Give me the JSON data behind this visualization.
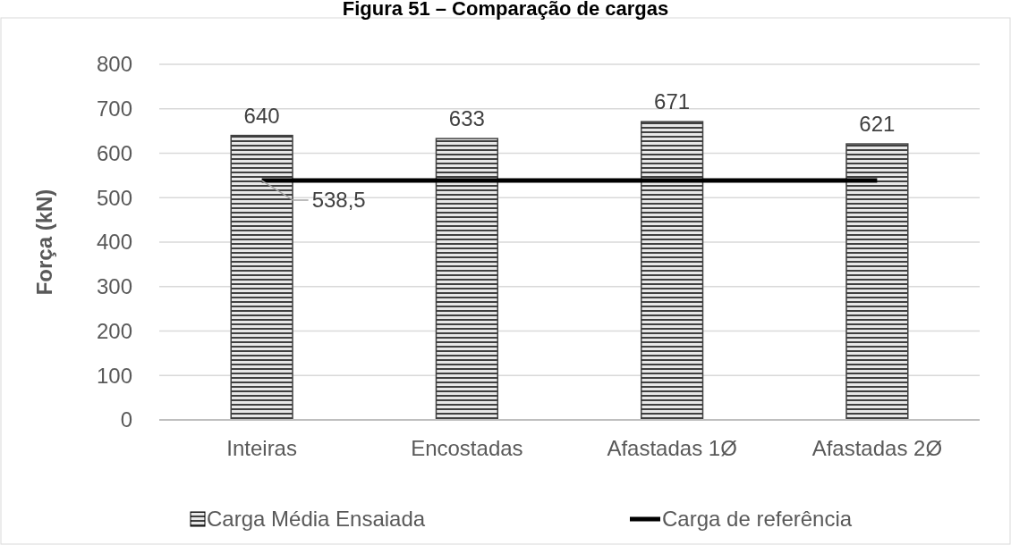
{
  "chart_data": {
    "type": "bar",
    "title": "Figura 51 – Comparação de cargas",
    "ylabel": "Força (kN)",
    "categories": [
      "Inteiras",
      "Encostadas",
      "Afastadas 1Ø",
      "Afastadas 2Ø"
    ],
    "series": [
      {
        "name": "Carga Média Ensaiada",
        "color": "#404040",
        "values": [
          640,
          633,
          671,
          621
        ],
        "value_labels": [
          "640",
          "633",
          "671",
          "621"
        ]
      },
      {
        "name": "Carga de referência",
        "type": "line",
        "color": "#000000",
        "values": [
          538.5,
          538.5,
          538.5,
          538.5
        ],
        "value_labels": [
          "538,5",
          null,
          null,
          null
        ]
      }
    ],
    "ylim": [
      0,
      800
    ],
    "yticks": [
      0,
      100,
      200,
      300,
      400,
      500,
      600,
      700,
      800
    ],
    "grid": "y",
    "legend": "bottom",
    "marker": "none"
  }
}
